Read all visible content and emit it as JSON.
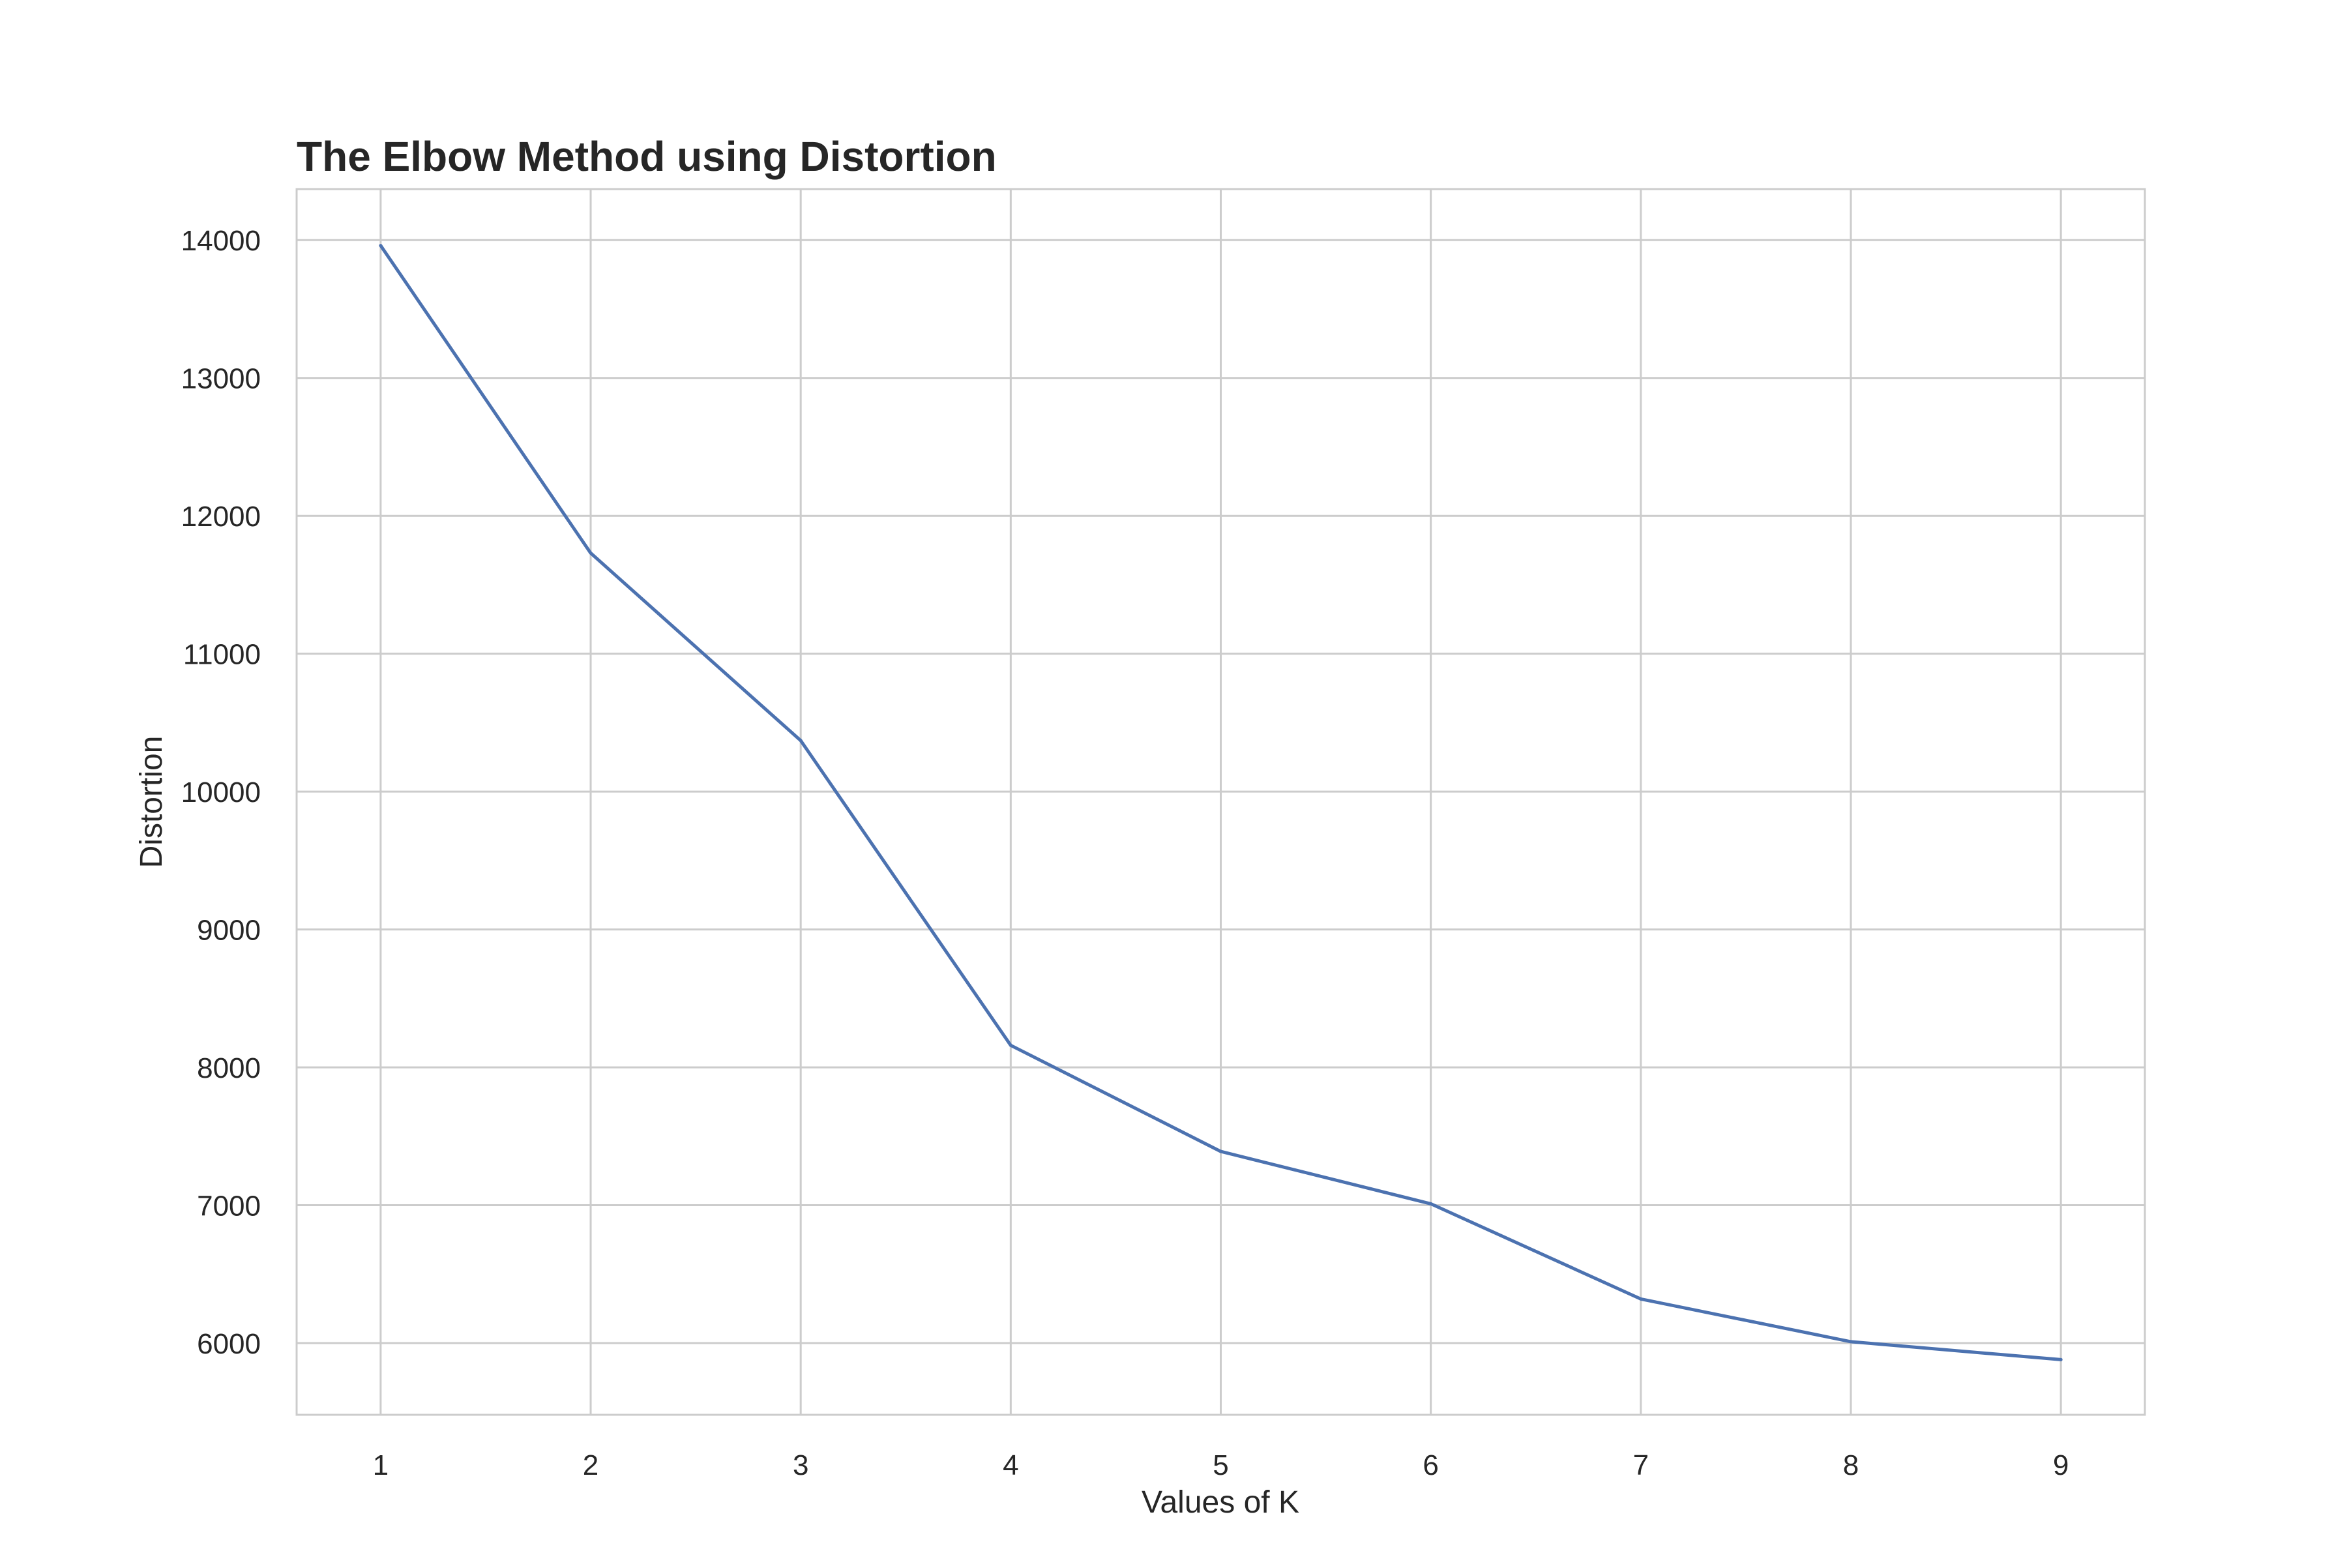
{
  "chart_data": {
    "type": "line",
    "title": "The Elbow Method using Distortion",
    "xlabel": "Values of K",
    "ylabel": "Distortion",
    "x": [
      1,
      2,
      3,
      4,
      5,
      6,
      7,
      8,
      9
    ],
    "x_ticks": [
      "1",
      "2",
      "3",
      "4",
      "5",
      "6",
      "7",
      "8",
      "9"
    ],
    "y_ticks": [
      "6000",
      "7000",
      "8000",
      "9000",
      "10000",
      "11000",
      "12000",
      "13000",
      "14000"
    ],
    "xlim": [
      0.6,
      9.4
    ],
    "ylim": [
      5480,
      14370
    ],
    "grid": true,
    "legend": "none",
    "series": [
      {
        "values": [
          13960,
          11730,
          10370,
          8160,
          7390,
          7010,
          6320,
          6010,
          5880
        ],
        "color": "#4c72b0"
      }
    ],
    "colors": {
      "grid": "#cccccc",
      "spine": "#cccccc",
      "text": "#262626",
      "background": "#ffffff"
    }
  }
}
